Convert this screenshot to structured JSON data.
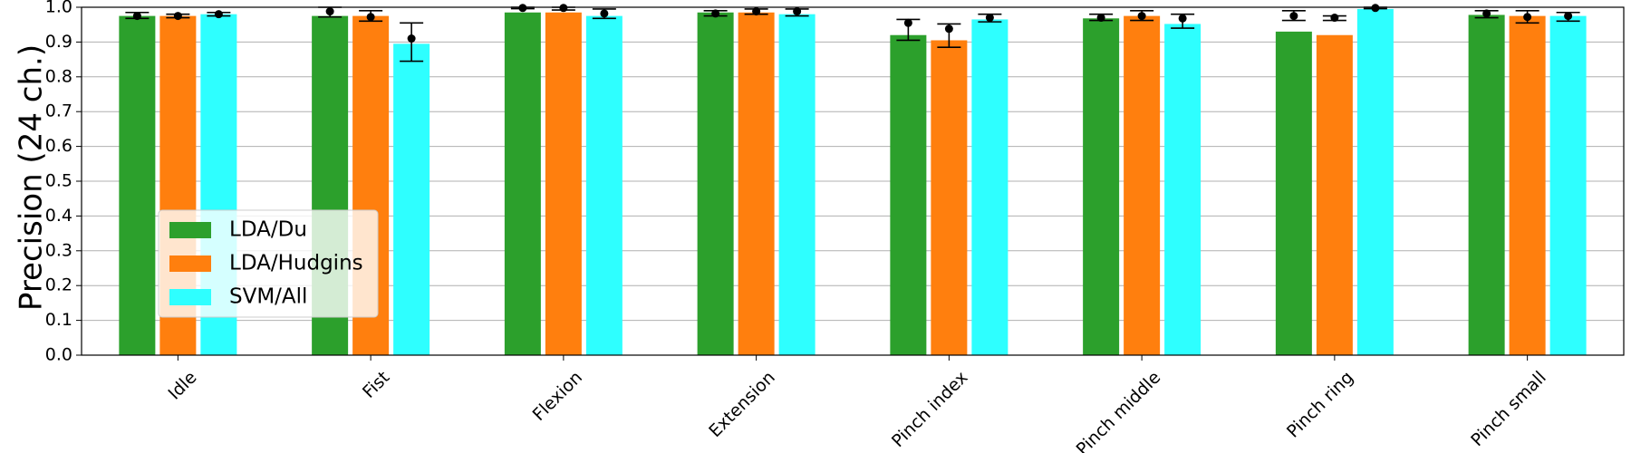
{
  "chart_data": {
    "type": "bar",
    "title": "",
    "xlabel": "",
    "ylabel": "Precision (24 ch.)",
    "ylim": [
      0,
      1.0
    ],
    "yticks": [
      "0.0",
      "0.1",
      "0.2",
      "0.3",
      "0.4",
      "0.5",
      "0.6",
      "0.7",
      "0.8",
      "0.9",
      "1.0"
    ],
    "grid": "horizontal",
    "legend_position": "lower-left",
    "categories": [
      "Idle",
      "Fist",
      "Flexion",
      "Extension",
      "Pinch index",
      "Pinch middle",
      "Pinch ring",
      "Pinch small"
    ],
    "series": [
      {
        "name": "LDA/Du",
        "color": "#2ca02c",
        "values": [
          0.975,
          0.975,
          0.985,
          0.985,
          0.92,
          0.968,
          0.93,
          0.978
        ],
        "markers": [
          0.975,
          0.988,
          0.998,
          0.982,
          0.955,
          0.97,
          0.975,
          0.982
        ],
        "error_low": [
          0.968,
          0.972,
          0.996,
          0.975,
          0.905,
          0.962,
          0.962,
          0.97
        ],
        "error_high": [
          0.985,
          1.0,
          1.0,
          0.99,
          0.965,
          0.98,
          0.99,
          0.99
        ]
      },
      {
        "name": "LDA/Hudgins",
        "color": "#ff7f0e",
        "values": [
          0.975,
          0.975,
          0.985,
          0.985,
          0.905,
          0.975,
          0.92,
          0.975
        ],
        "markers": [
          0.975,
          0.972,
          0.998,
          0.988,
          0.938,
          0.975,
          0.97,
          0.972
        ],
        "error_low": [
          0.97,
          0.96,
          0.992,
          0.98,
          0.885,
          0.962,
          0.962,
          0.955
        ],
        "error_high": [
          0.98,
          0.99,
          1.0,
          0.995,
          0.952,
          0.99,
          0.975,
          0.99
        ]
      },
      {
        "name": "SVM/All",
        "color": "#2effff",
        "values": [
          0.98,
          0.895,
          0.975,
          0.98,
          0.965,
          0.952,
          0.995,
          0.975
        ],
        "markers": [
          0.98,
          0.91,
          0.982,
          0.988,
          0.97,
          0.968,
          0.998,
          0.975
        ],
        "error_low": [
          0.975,
          0.845,
          0.968,
          0.975,
          0.958,
          0.94,
          0.996,
          0.96
        ],
        "error_high": [
          0.985,
          0.955,
          0.995,
          0.995,
          0.98,
          0.98,
          1.0,
          0.985
        ]
      }
    ]
  }
}
